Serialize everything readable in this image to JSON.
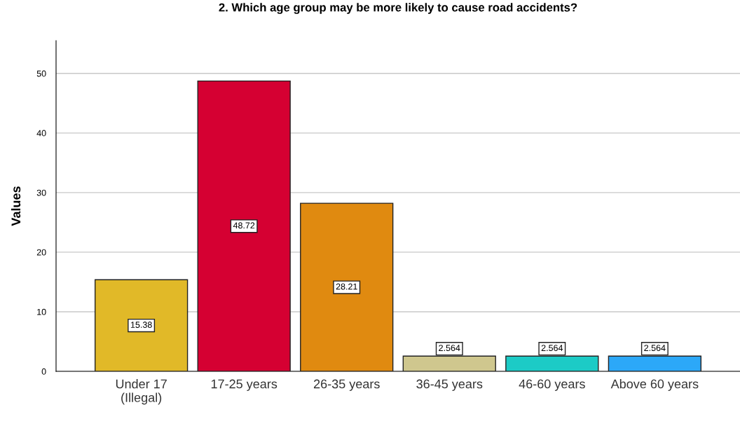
{
  "chart_data": {
    "type": "bar",
    "title": "2. Which age group may be more likely to cause road accidents?",
    "ylabel": "Values",
    "categories": [
      "Under 17\n(Illegal)",
      "17-25 years",
      "26-35 years",
      "36-45 years",
      "46-60 years",
      "Above 60 years"
    ],
    "values": [
      15.38,
      48.72,
      28.21,
      2.564,
      2.564,
      2.564
    ],
    "colors": [
      "#e1b928",
      "#d50032",
      "#e08a10",
      "#cfc78e",
      "#1ccbc6",
      "#2ca8f8"
    ],
    "ylim": [
      0,
      55.5
    ],
    "yticks": [
      0,
      10,
      20,
      30,
      40,
      50
    ],
    "grid": "y",
    "data_labels": true
  }
}
